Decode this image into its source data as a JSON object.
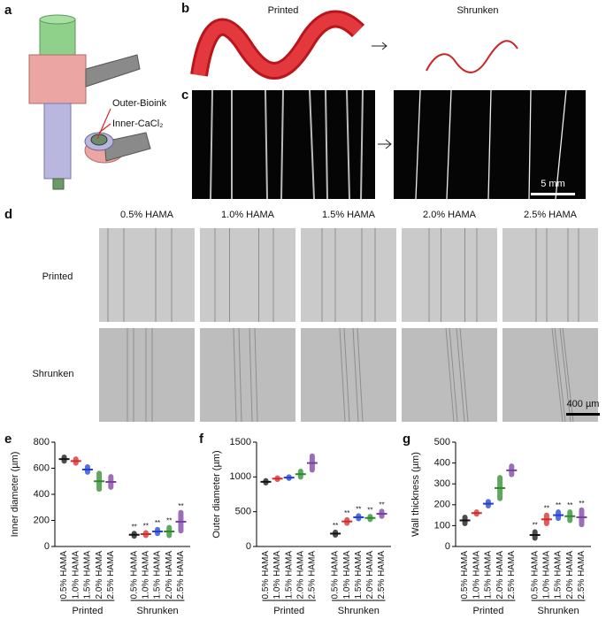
{
  "panel_labels": [
    "a",
    "b",
    "c",
    "d",
    "e",
    "f",
    "g"
  ],
  "panel_a": {
    "outer": "Outer-Bioink",
    "inner": "Inner-CaCl₂"
  },
  "panel_b": {
    "left": "Printed",
    "right": "Shrunken"
  },
  "panel_c": {
    "scale_bar": "5 mm"
  },
  "panel_d": {
    "columns": [
      "0.5% HAMA",
      "1.0% HAMA",
      "1.5% HAMA",
      "2.0% HAMA",
      "2.5% HAMA"
    ],
    "rows": [
      "Printed",
      "Shrunken"
    ],
    "scale_bar": "400 µm"
  },
  "chart_data": [
    {
      "type": "strip",
      "ylabel": "Inner diameter (µm)",
      "categories": [
        "0.5% HAMA",
        "1.0% HAMA",
        "1.5% HAMA",
        "2.0% HAMA",
        "2.5% HAMA",
        "0.5% HAMA",
        "1.0% HAMA",
        "1.5% HAMA",
        "2.0% HAMA",
        "2.5% HAMA"
      ],
      "group_labels": [
        "Printed",
        "Shrunken"
      ],
      "values": [
        670,
        655,
        590,
        500,
        495,
        90,
        95,
        115,
        115,
        190
      ],
      "spread": [
        15,
        15,
        20,
        60,
        40,
        10,
        10,
        15,
        30,
        70
      ],
      "significance": [
        null,
        null,
        null,
        null,
        null,
        "**",
        "**",
        "**",
        "**",
        "**"
      ],
      "colors": [
        "#111111",
        "#d62728",
        "#1f3fd0",
        "#2a8a2a",
        "#7a3fa0",
        "#111111",
        "#d62728",
        "#1f3fd0",
        "#2a8a2a",
        "#7a3fa0"
      ],
      "ylim": [
        0,
        800
      ],
      "yticks": [
        0,
        200,
        400,
        600,
        800
      ]
    },
    {
      "type": "strip",
      "ylabel": "Outer diameter (µm)",
      "categories": [
        "0.5% HAMA",
        "1.0% HAMA",
        "1.5% HAMA",
        "2.0% HAMA",
        "2.5% HAMA",
        "0.5% HAMA",
        "1.0% HAMA",
        "1.5% HAMA",
        "2.0% HAMA",
        "2.5% HAMA"
      ],
      "group_labels": [
        "Printed",
        "Shrunken"
      ],
      "values": [
        930,
        975,
        990,
        1040,
        1200,
        185,
        360,
        420,
        410,
        470
      ],
      "spread": [
        15,
        10,
        10,
        40,
        100,
        20,
        25,
        20,
        20,
        35
      ],
      "significance": [
        null,
        null,
        null,
        null,
        null,
        "**",
        "**",
        "**",
        "**",
        "**"
      ],
      "colors": [
        "#111111",
        "#d62728",
        "#1f3fd0",
        "#2a8a2a",
        "#7a3fa0",
        "#111111",
        "#d62728",
        "#1f3fd0",
        "#2a8a2a",
        "#7a3fa0"
      ],
      "ylim": [
        0,
        1500
      ],
      "yticks": [
        0,
        500,
        1000,
        1500
      ]
    },
    {
      "type": "strip",
      "ylabel": "Wall thickness (µm)",
      "categories": [
        "0.5% HAMA",
        "1.0% HAMA",
        "1.5% HAMA",
        "2.0% HAMA",
        "2.5% HAMA",
        "0.5% HAMA",
        "1.0% HAMA",
        "1.5% HAMA",
        "2.0% HAMA",
        "2.5% HAMA"
      ],
      "group_labels": [
        "Printed",
        "Shrunken"
      ],
      "values": [
        125,
        160,
        205,
        280,
        365,
        55,
        130,
        150,
        145,
        140
      ],
      "spread": [
        15,
        5,
        10,
        50,
        20,
        15,
        20,
        15,
        20,
        35
      ],
      "significance": [
        null,
        null,
        null,
        null,
        null,
        "**",
        "**",
        "**",
        "**",
        "**"
      ],
      "colors": [
        "#111111",
        "#d62728",
        "#1f3fd0",
        "#2a8a2a",
        "#7a3fa0",
        "#111111",
        "#d62728",
        "#1f3fd0",
        "#2a8a2a",
        "#7a3fa0"
      ],
      "ylim": [
        0,
        500
      ],
      "yticks": [
        0,
        100,
        200,
        300,
        400,
        500
      ]
    }
  ]
}
